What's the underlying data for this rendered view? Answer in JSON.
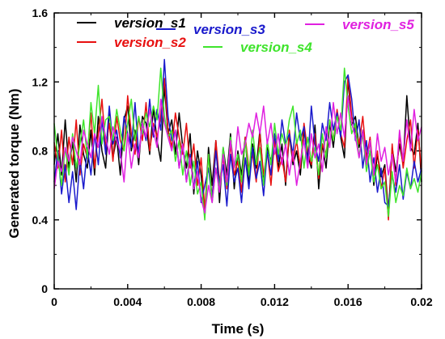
{
  "chart_data": {
    "type": "line",
    "title": "",
    "xlabel": "Time (s)",
    "ylabel": "Generated torque (Nm)",
    "xlim": [
      0,
      0.02
    ],
    "ylim": [
      0,
      1.6
    ],
    "xticks": [
      0,
      0.004,
      0.008,
      0.012,
      0.016,
      0.02
    ],
    "xtick_labels": [
      "0",
      "0.004",
      "0.008",
      "0.012",
      "0.016",
      "0.02"
    ],
    "yticks": [
      0,
      0.4,
      0.8,
      1.2,
      1.6
    ],
    "ytick_labels": [
      "0",
      "0.4",
      "0.8",
      "1.2",
      "1.6"
    ],
    "grid": false,
    "legend_position": "top",
    "x": [
      0,
      0.0002,
      0.0004,
      0.0006,
      0.0008,
      0.001,
      0.0012,
      0.0014,
      0.0016,
      0.0018,
      0.002,
      0.0022,
      0.0024,
      0.0026,
      0.0028,
      0.003,
      0.0032,
      0.0034,
      0.0036,
      0.0038,
      0.004,
      0.0042,
      0.0044,
      0.0046,
      0.0048,
      0.005,
      0.0052,
      0.0054,
      0.0056,
      0.0058,
      0.006,
      0.0062,
      0.0064,
      0.0066,
      0.0068,
      0.007,
      0.0072,
      0.0074,
      0.0076,
      0.0078,
      0.008,
      0.0082,
      0.0084,
      0.0086,
      0.0088,
      0.009,
      0.0092,
      0.0094,
      0.0096,
      0.0098,
      0.01,
      0.0102,
      0.0104,
      0.0106,
      0.0108,
      0.011,
      0.0112,
      0.0114,
      0.0116,
      0.0118,
      0.012,
      0.0122,
      0.0124,
      0.0126,
      0.0128,
      0.013,
      0.0132,
      0.0134,
      0.0136,
      0.0138,
      0.014,
      0.0142,
      0.0144,
      0.0146,
      0.0148,
      0.015,
      0.0152,
      0.0154,
      0.0156,
      0.0158,
      0.016,
      0.0162,
      0.0164,
      0.0166,
      0.0168,
      0.017,
      0.0172,
      0.0174,
      0.0176,
      0.0178,
      0.018,
      0.0182,
      0.0184,
      0.0186,
      0.0188,
      0.019,
      0.0192,
      0.0194,
      0.0196,
      0.0198,
      0.02
    ],
    "series": [
      {
        "name": "version_s1",
        "color": "#000000",
        "values": [
          0.72,
          0.9,
          0.66,
          0.98,
          0.7,
          0.85,
          0.62,
          0.95,
          0.78,
          0.7,
          0.92,
          0.66,
          1.0,
          0.8,
          0.7,
          1.04,
          0.76,
          0.88,
          0.66,
          0.98,
          1.06,
          0.8,
          0.92,
          0.72,
          1.0,
          0.96,
          0.78,
          1.05,
          0.86,
          0.74,
          1.18,
          0.9,
          0.98,
          0.78,
          1.02,
          0.82,
          0.7,
          0.9,
          0.55,
          0.8,
          0.66,
          0.42,
          0.82,
          0.6,
          0.86,
          0.5,
          0.82,
          0.66,
          0.9,
          0.58,
          0.8,
          0.66,
          0.88,
          0.6,
          0.84,
          0.7,
          0.92,
          0.62,
          0.82,
          0.74,
          0.88,
          0.7,
          0.84,
          0.6,
          0.9,
          0.72,
          0.8,
          0.66,
          0.92,
          0.78,
          0.7,
          0.95,
          0.58,
          0.84,
          0.7,
          0.96,
          0.82,
          1.02,
          0.88,
          0.76,
          1.22,
          0.95,
          1.0,
          0.82,
          0.92,
          0.72,
          0.86,
          0.6,
          0.78,
          0.65,
          0.72,
          0.44,
          0.82,
          0.68,
          0.84,
          0.72,
          1.12,
          0.82,
          0.78,
          0.96,
          0.62
        ]
      },
      {
        "name": "version_s2",
        "color": "#e81010",
        "values": [
          0.85,
          0.7,
          0.92,
          0.62,
          0.88,
          0.72,
          0.98,
          0.66,
          0.84,
          0.76,
          1.02,
          0.7,
          0.9,
          1.1,
          0.82,
          0.96,
          0.74,
          1.0,
          0.86,
          0.8,
          1.12,
          0.9,
          0.78,
          1.0,
          0.86,
          1.08,
          0.8,
          0.96,
          0.88,
          1.0,
          1.22,
          0.92,
          0.82,
          1.02,
          0.88,
          0.78,
          0.96,
          0.7,
          0.84,
          0.6,
          0.76,
          0.46,
          0.78,
          0.52,
          0.86,
          0.62,
          0.76,
          0.58,
          0.84,
          0.66,
          0.74,
          0.56,
          0.88,
          0.7,
          0.78,
          0.62,
          0.9,
          0.66,
          0.8,
          0.6,
          0.86,
          0.68,
          0.76,
          0.62,
          0.92,
          0.74,
          0.86,
          0.7,
          0.96,
          0.8,
          0.72,
          0.9,
          0.64,
          0.84,
          0.78,
          0.98,
          0.86,
          1.04,
          0.9,
          0.82,
          1.24,
          1.0,
          0.92,
          0.84,
          1.0,
          0.76,
          0.88,
          0.66,
          0.8,
          0.58,
          0.7,
          0.4,
          0.84,
          0.6,
          0.9,
          0.7,
          0.86,
          0.98,
          0.7,
          0.92,
          0.68
        ]
      },
      {
        "name": "version_s3",
        "color": "#1a1acc",
        "values": [
          0.62,
          0.8,
          0.55,
          0.72,
          0.5,
          0.68,
          0.46,
          0.75,
          0.58,
          0.82,
          0.66,
          0.9,
          0.72,
          0.98,
          0.78,
          1.06,
          0.84,
          0.92,
          0.76,
          1.0,
          0.9,
          0.82,
          1.08,
          0.78,
          0.96,
          0.86,
          1.1,
          0.88,
          1.04,
          0.92,
          1.33,
          1.0,
          0.86,
          0.92,
          0.7,
          0.84,
          0.62,
          0.78,
          0.58,
          0.74,
          0.5,
          0.6,
          0.7,
          0.52,
          0.8,
          0.6,
          0.72,
          0.48,
          0.78,
          0.62,
          0.7,
          0.5,
          0.76,
          0.58,
          0.82,
          0.64,
          0.74,
          0.54,
          0.8,
          0.66,
          0.9,
          0.74,
          0.98,
          0.84,
          0.9,
          0.78,
          1.02,
          0.86,
          0.94,
          0.72,
          1.06,
          0.84,
          0.74,
          0.96,
          0.86,
          1.08,
          0.92,
          1.02,
          0.88,
          1.2,
          1.24,
          1.1,
          0.86,
          0.98,
          0.7,
          0.86,
          0.62,
          0.76,
          0.56,
          0.7,
          0.5,
          0.48,
          0.66,
          0.56,
          0.72,
          0.52,
          0.68,
          0.58,
          0.74,
          0.62,
          0.7
        ]
      },
      {
        "name": "version_s4",
        "color": "#3fe42c",
        "values": [
          0.96,
          0.76,
          0.6,
          0.82,
          0.66,
          0.9,
          0.7,
          0.84,
          0.98,
          0.76,
          1.08,
          0.9,
          1.18,
          0.84,
          0.98,
          1.0,
          0.86,
          1.04,
          0.92,
          0.8,
          0.96,
          1.1,
          0.86,
          1.0,
          0.9,
          1.02,
          0.94,
          1.06,
          0.98,
          1.28,
          1.0,
          0.88,
          0.92,
          0.74,
          0.86,
          0.66,
          0.8,
          0.6,
          0.74,
          0.55,
          0.62,
          0.4,
          0.78,
          0.5,
          0.7,
          0.58,
          0.82,
          0.6,
          0.88,
          0.7,
          0.78,
          0.62,
          0.86,
          0.66,
          0.92,
          0.72,
          0.82,
          0.6,
          0.86,
          0.72,
          0.96,
          0.78,
          0.9,
          0.82,
          0.98,
          1.06,
          0.84,
          0.92,
          0.7,
          0.88,
          0.74,
          0.82,
          0.66,
          0.9,
          0.76,
          0.98,
          0.86,
          1.0,
          0.92,
          1.28,
          1.06,
          0.9,
          0.96,
          0.76,
          0.9,
          0.68,
          0.8,
          0.62,
          0.72,
          0.58,
          0.62,
          0.42,
          0.68,
          0.5,
          0.6,
          0.54,
          0.7,
          0.58,
          0.64,
          0.56,
          0.68
        ]
      },
      {
        "name": "version_s5",
        "color": "#e020e0",
        "values": [
          0.58,
          0.74,
          0.68,
          0.82,
          0.74,
          0.88,
          0.8,
          0.72,
          0.92,
          0.84,
          0.76,
          0.9,
          0.82,
          1.0,
          0.88,
          0.78,
          0.94,
          0.86,
          0.8,
          0.62,
          0.9,
          0.7,
          0.84,
          0.76,
          0.96,
          0.88,
          1.04,
          0.92,
          0.82,
          1.1,
          0.96,
          0.88,
          0.8,
          0.92,
          0.7,
          0.84,
          0.62,
          0.76,
          0.58,
          0.68,
          0.52,
          0.44,
          0.6,
          0.5,
          0.7,
          0.56,
          0.78,
          0.62,
          0.86,
          0.7,
          0.94,
          0.78,
          0.84,
          0.96,
          0.88,
          1.02,
          0.9,
          1.06,
          0.84,
          0.96,
          0.78,
          0.9,
          0.72,
          0.84,
          0.66,
          0.8,
          0.6,
          0.74,
          0.86,
          0.7,
          0.9,
          0.76,
          0.84,
          0.68,
          0.94,
          0.82,
          1.08,
          0.9,
          1.02,
          0.88,
          1.12,
          0.96,
          0.88,
          0.76,
          0.92,
          0.72,
          0.86,
          0.66,
          0.9,
          0.74,
          0.82,
          0.66,
          0.78,
          0.62,
          0.92,
          0.74,
          0.98,
          0.8,
          1.04,
          0.86,
          0.94
        ]
      }
    ]
  }
}
